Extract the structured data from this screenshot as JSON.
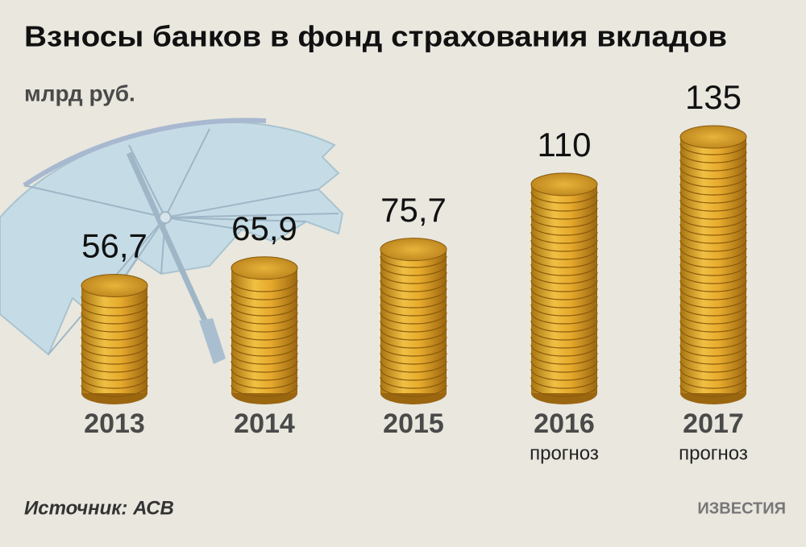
{
  "chart_data": {
    "type": "bar",
    "title": "Взносы банков в фонд страхования вкладов",
    "unit": "млрд руб.",
    "categories": [
      "2013",
      "2014",
      "2015",
      "2016",
      "2017"
    ],
    "category_notes": [
      null,
      null,
      null,
      "прогноз",
      "прогноз"
    ],
    "values": [
      56.7,
      65.9,
      75.7,
      110,
      135
    ],
    "value_labels": [
      "56,7",
      "65,9",
      "75,7",
      "110",
      "135"
    ],
    "color": "#e0a832",
    "source": "Источник: АСВ",
    "logo": "ИЗВЕСТИЯ"
  }
}
